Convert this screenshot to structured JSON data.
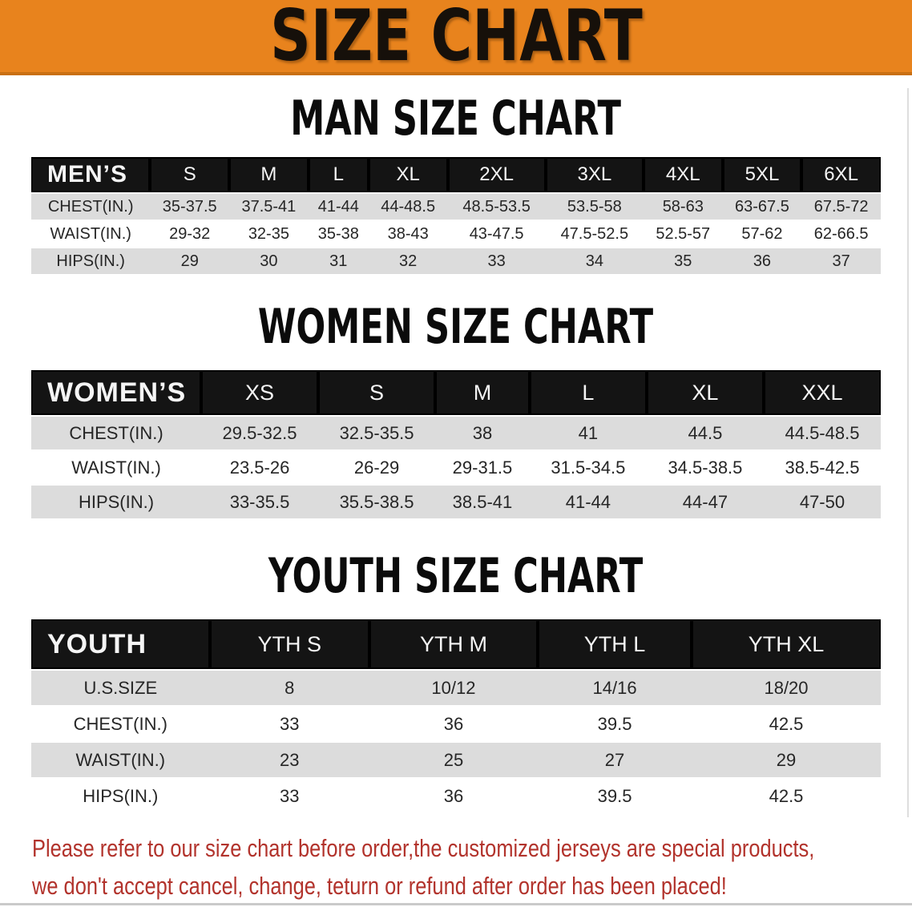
{
  "colors": {
    "banner_orange": "#e8831d",
    "banner_border": "#c96f12",
    "table_header_black": "#141414",
    "row_gray": "#dcdcdc",
    "disclaimer_red": "#b2332c"
  },
  "banner": {
    "title": "SIZE CHART"
  },
  "sections": [
    {
      "id": "men",
      "heading": "MAN SIZE CHART",
      "group_label": "MEN’S",
      "size_headers": [
        "S",
        "M",
        "L",
        "XL",
        "2XL",
        "3XL",
        "4XL",
        "5XL",
        "6XL"
      ],
      "rows": [
        {
          "label": "CHEST(IN.)",
          "values": [
            "35-37.5",
            "37.5-41",
            "41-44",
            "44-48.5",
            "48.5-53.5",
            "53.5-58",
            "58-63",
            "63-67.5",
            "67.5-72"
          ]
        },
        {
          "label": "WAIST(IN.)",
          "values": [
            "29-32",
            "32-35",
            "35-38",
            "38-43",
            "43-47.5",
            "47.5-52.5",
            "52.5-57",
            "57-62",
            "62-66.5"
          ]
        },
        {
          "label": "HIPS(IN.)",
          "values": [
            "29",
            "30",
            "31",
            "32",
            "33",
            "34",
            "35",
            "36",
            "37"
          ]
        }
      ]
    },
    {
      "id": "women",
      "heading": "WOMEN SIZE CHART",
      "group_label": "WOMEN’S",
      "size_headers": [
        "XS",
        "S",
        "M",
        "L",
        "XL",
        "XXL"
      ],
      "rows": [
        {
          "label": "CHEST(IN.)",
          "values": [
            "29.5-32.5",
            "32.5-35.5",
            "38",
            "41",
            "44.5",
            "44.5-48.5"
          ]
        },
        {
          "label": "WAIST(IN.)",
          "values": [
            "23.5-26",
            "26-29",
            "29-31.5",
            "31.5-34.5",
            "34.5-38.5",
            "38.5-42.5"
          ]
        },
        {
          "label": "HIPS(IN.)",
          "values": [
            "33-35.5",
            "35.5-38.5",
            "38.5-41",
            "41-44",
            "44-47",
            "47-50"
          ]
        }
      ]
    },
    {
      "id": "youth",
      "heading": "YOUTH SIZE CHART",
      "group_label": "YOUTH",
      "size_headers": [
        "YTH S",
        "YTH M",
        "YTH L",
        "YTH XL"
      ],
      "rows": [
        {
          "label": "U.S.SIZE",
          "values": [
            "8",
            "10/12",
            "14/16",
            "18/20"
          ]
        },
        {
          "label": "CHEST(IN.)",
          "values": [
            "33",
            "36",
            "39.5",
            "42.5"
          ]
        },
        {
          "label": "WAIST(IN.)",
          "values": [
            "23",
            "25",
            "27",
            "29"
          ]
        },
        {
          "label": "HIPS(IN.)",
          "values": [
            "33",
            "36",
            "39.5",
            "42.5"
          ]
        }
      ]
    }
  ],
  "disclaimer": {
    "lines": [
      "Please refer to our size chart before order,the customized jerseys are special products,",
      "we don't accept cancel, change, teturn or refund after order has been placed!"
    ]
  }
}
